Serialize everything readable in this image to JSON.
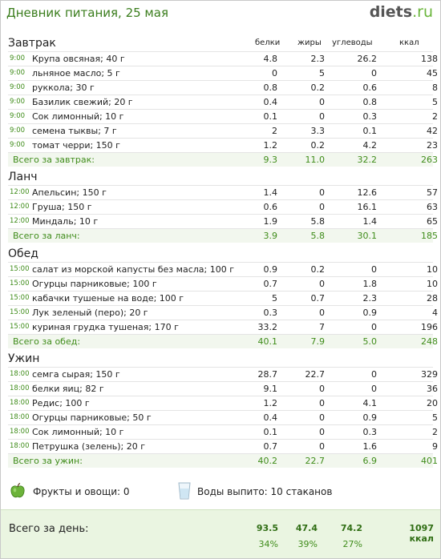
{
  "header": {
    "title": "Дневник питания, 25 мая",
    "logo_main": "diets",
    "logo_suffix": ".ru"
  },
  "columns": {
    "protein": "белки",
    "fat": "жиры",
    "carbs": "углеводы",
    "kcal": "ккал"
  },
  "sections": [
    {
      "title": "Завтрак",
      "items": [
        {
          "time": "9:00",
          "name": "Крупа овсяная; 40 г",
          "p": "4.8",
          "f": "2.3",
          "c": "26.2",
          "k": "138"
        },
        {
          "time": "9:00",
          "name": "льняное масло; 5 г",
          "p": "0",
          "f": "5",
          "c": "0",
          "k": "45"
        },
        {
          "time": "9:00",
          "name": "руккола; 30 г",
          "p": "0.8",
          "f": "0.2",
          "c": "0.6",
          "k": "8"
        },
        {
          "time": "9:00",
          "name": "Базилик свежий; 20 г",
          "p": "0.4",
          "f": "0",
          "c": "0.8",
          "k": "5"
        },
        {
          "time": "9:00",
          "name": "Сок лимонный; 10 г",
          "p": "0.1",
          "f": "0",
          "c": "0.3",
          "k": "2"
        },
        {
          "time": "9:00",
          "name": "семена тыквы; 7 г",
          "p": "2",
          "f": "3.3",
          "c": "0.1",
          "k": "42"
        },
        {
          "time": "9:00",
          "name": "томат черри; 150 г",
          "p": "1.2",
          "f": "0.2",
          "c": "4.2",
          "k": "23"
        }
      ],
      "total": {
        "label": "Всего за завтрак:",
        "p": "9.3",
        "f": "11.0",
        "c": "32.2",
        "k": "263"
      }
    },
    {
      "title": "Ланч",
      "items": [
        {
          "time": "12:00",
          "name": "Апельсин; 150 г",
          "p": "1.4",
          "f": "0",
          "c": "12.6",
          "k": "57"
        },
        {
          "time": "12:00",
          "name": "Груша; 150 г",
          "p": "0.6",
          "f": "0",
          "c": "16.1",
          "k": "63"
        },
        {
          "time": "12:00",
          "name": "Миндаль; 10 г",
          "p": "1.9",
          "f": "5.8",
          "c": "1.4",
          "k": "65"
        }
      ],
      "total": {
        "label": "Всего за ланч:",
        "p": "3.9",
        "f": "5.8",
        "c": "30.1",
        "k": "185"
      }
    },
    {
      "title": "Обед",
      "items": [
        {
          "time": "15:00",
          "name": "салат из морской капусты без масла; 100 г",
          "p": "0.9",
          "f": "0.2",
          "c": "0",
          "k": "10"
        },
        {
          "time": "15:00",
          "name": "Огурцы парниковые; 100 г",
          "p": "0.7",
          "f": "0",
          "c": "1.8",
          "k": "10"
        },
        {
          "time": "15:00",
          "name": "кабачки тушеные на воде; 100 г",
          "p": "5",
          "f": "0.7",
          "c": "2.3",
          "k": "28"
        },
        {
          "time": "15:00",
          "name": "Лук зеленый (перо); 20 г",
          "p": "0.3",
          "f": "0",
          "c": "0.9",
          "k": "4"
        },
        {
          "time": "15:00",
          "name": "куриная грудка тушеная; 170 г",
          "p": "33.2",
          "f": "7",
          "c": "0",
          "k": "196"
        }
      ],
      "total": {
        "label": "Всего за обед:",
        "p": "40.1",
        "f": "7.9",
        "c": "5.0",
        "k": "248"
      }
    },
    {
      "title": "Ужин",
      "items": [
        {
          "time": "18:00",
          "name": "семга сырая; 150 г",
          "p": "28.7",
          "f": "22.7",
          "c": "0",
          "k": "329"
        },
        {
          "time": "18:00",
          "name": "белки яиц; 82 г",
          "p": "9.1",
          "f": "0",
          "c": "0",
          "k": "36"
        },
        {
          "time": "18:00",
          "name": "Редис; 100 г",
          "p": "1.2",
          "f": "0",
          "c": "4.1",
          "k": "20"
        },
        {
          "time": "18:00",
          "name": "Огурцы парниковые; 50 г",
          "p": "0.4",
          "f": "0",
          "c": "0.9",
          "k": "5"
        },
        {
          "time": "18:00",
          "name": "Сок лимонный; 10 г",
          "p": "0.1",
          "f": "0",
          "c": "0.3",
          "k": "2"
        },
        {
          "time": "18:00",
          "name": "Петрушка (зелень); 20 г",
          "p": "0.7",
          "f": "0",
          "c": "1.6",
          "k": "9"
        }
      ],
      "total": {
        "label": "Всего за ужин:",
        "p": "40.2",
        "f": "22.7",
        "c": "6.9",
        "k": "401"
      }
    }
  ],
  "extras": {
    "fruits": "Фрукты и овощи: 0",
    "water": "Воды выпито: 10 стаканов",
    "apple_icon": "apple-icon",
    "glass_icon": "water-glass-icon"
  },
  "day_total": {
    "label": "Всего за день:",
    "p": "93.5",
    "f": "47.4",
    "c": "74.2",
    "k": "1097 ккал",
    "p_pct": "34%",
    "f_pct": "39%",
    "c_pct": "27%"
  },
  "colors": {
    "accent_green": "#3f8c1a",
    "total_bg": "#f2f7ee",
    "day_bg": "#eaf5e1"
  }
}
